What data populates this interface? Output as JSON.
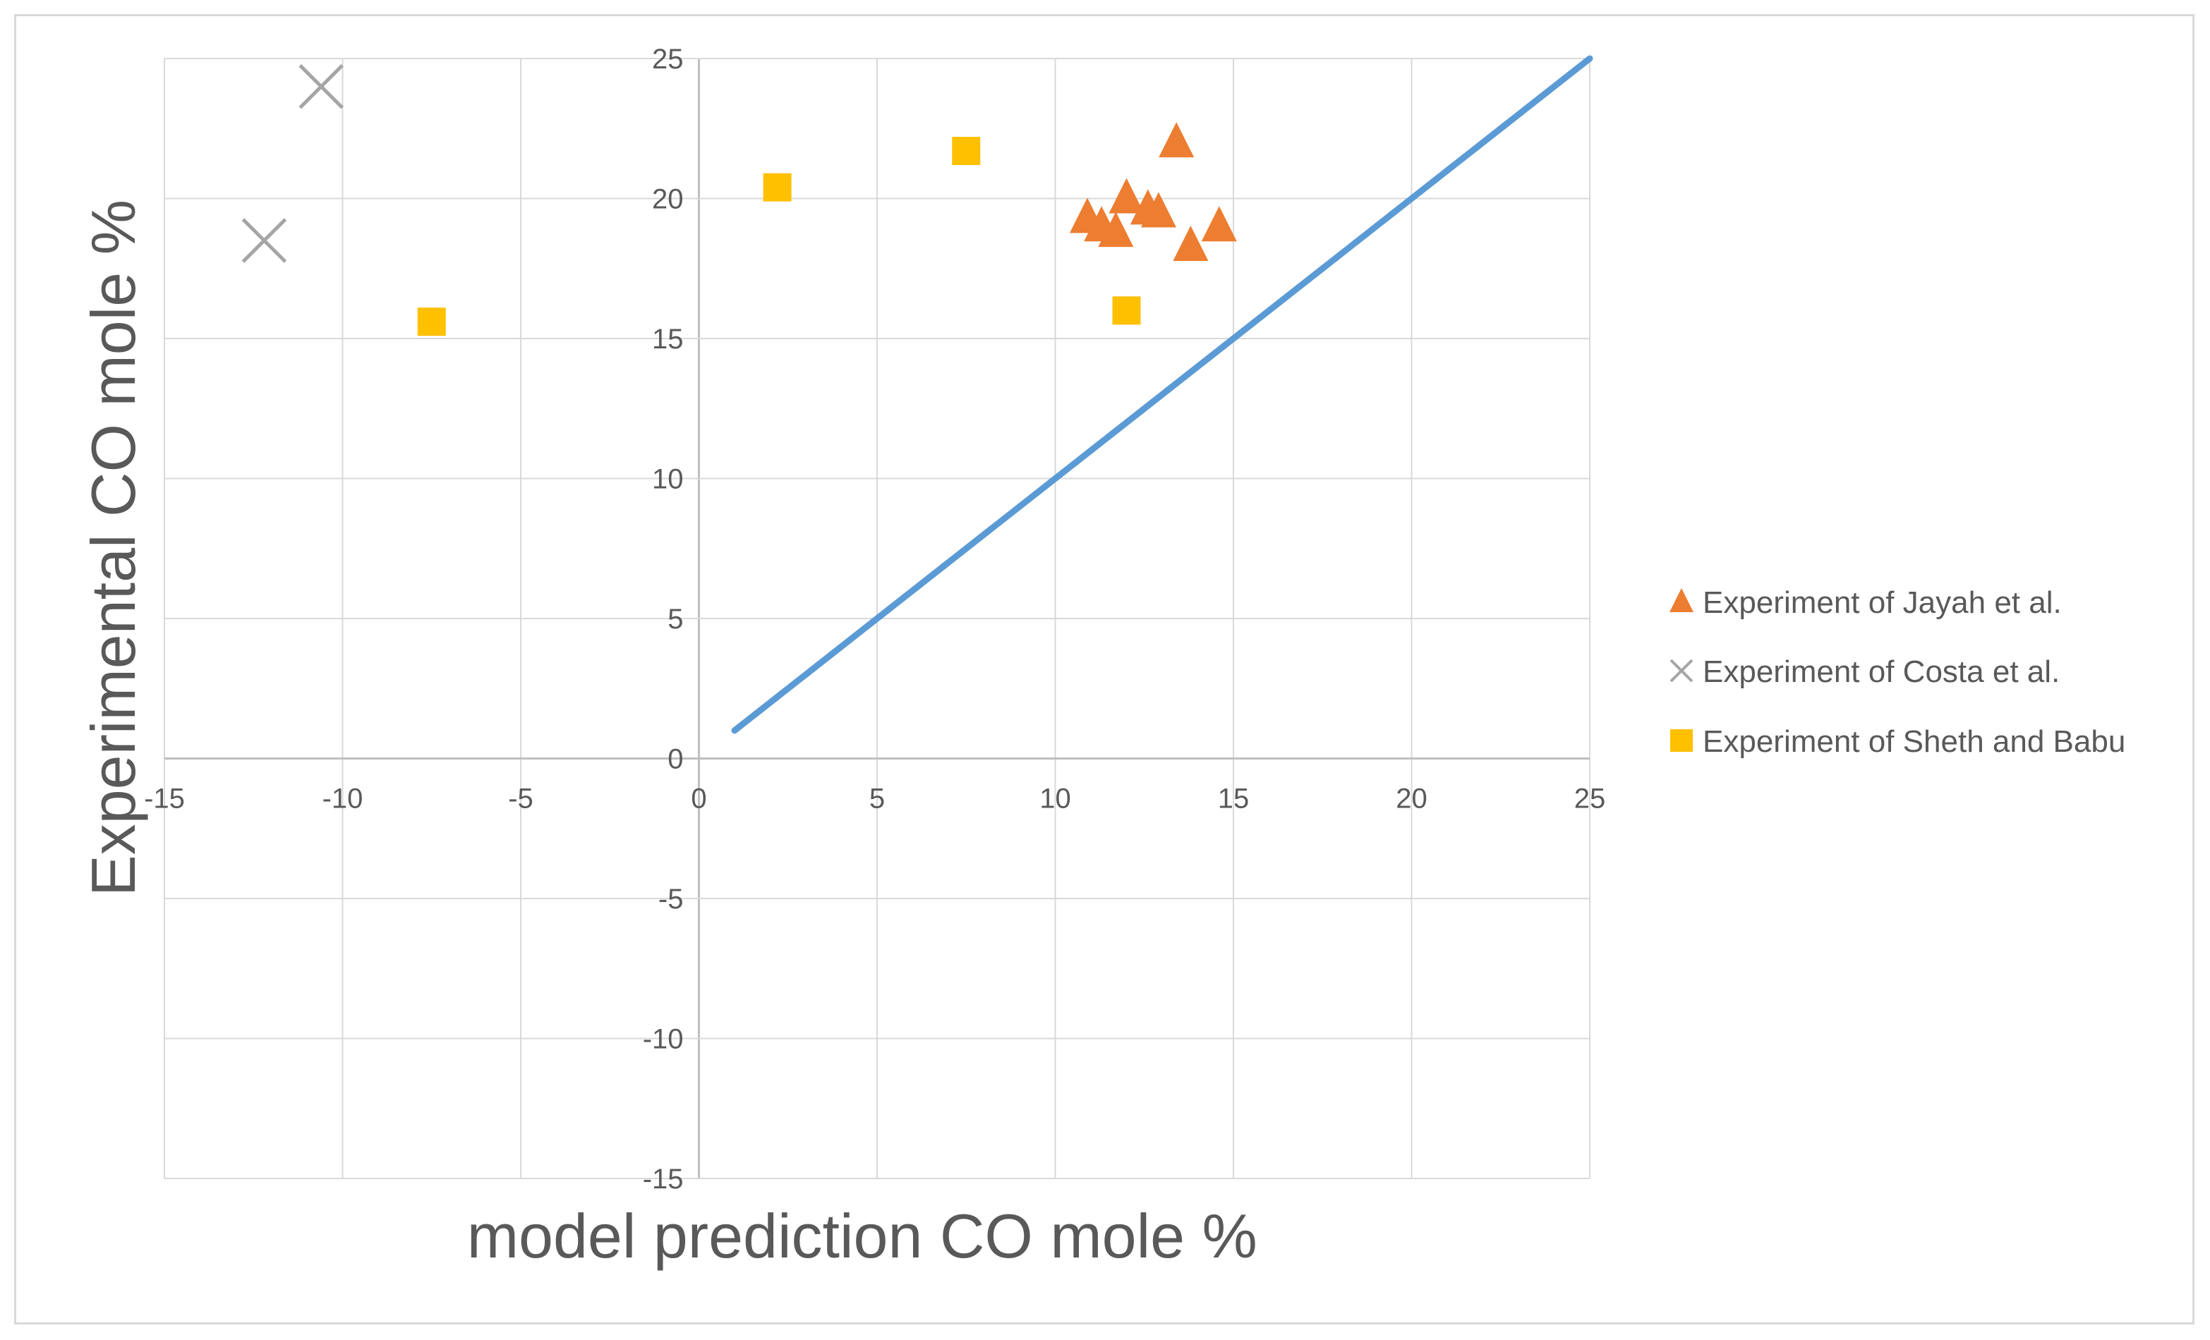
{
  "chart_data": {
    "type": "scatter",
    "title": "",
    "xlabel": "model prediction CO mole %",
    "ylabel": "Experimental CO mole %",
    "xlim": [
      -15,
      25
    ],
    "ylim": [
      -15,
      25
    ],
    "xticks": [
      -15,
      -10,
      -5,
      0,
      5,
      10,
      15,
      20,
      25
    ],
    "yticks": [
      -15,
      -10,
      -5,
      0,
      5,
      10,
      15,
      20,
      25
    ],
    "grid": true,
    "legend_position": "right",
    "reference_line": {
      "x": [
        1,
        25
      ],
      "y": [
        1,
        25
      ],
      "color": "#5b9bd5"
    },
    "series": [
      {
        "name": "Experiment of Jayah et al.",
        "marker": "triangle",
        "color": "#ed7d31",
        "points": [
          [
            10.9,
            19.4
          ],
          [
            11.3,
            19.1
          ],
          [
            11.7,
            18.9
          ],
          [
            12.0,
            20.1
          ],
          [
            12.6,
            19.7
          ],
          [
            12.9,
            19.6
          ],
          [
            13.4,
            22.1
          ],
          [
            13.8,
            18.4
          ],
          [
            14.6,
            19.1
          ]
        ]
      },
      {
        "name": "Experiment of Costa et al.",
        "marker": "x",
        "color": "#a5a5a5",
        "points": [
          [
            -10.6,
            24.0
          ],
          [
            -12.2,
            18.5
          ]
        ]
      },
      {
        "name": "Experiment of Sheth and Babu",
        "marker": "square",
        "color": "#ffc000",
        "points": [
          [
            -7.5,
            15.6
          ],
          [
            2.2,
            20.4
          ],
          [
            7.5,
            21.7
          ],
          [
            12.0,
            16.0
          ]
        ]
      }
    ]
  }
}
